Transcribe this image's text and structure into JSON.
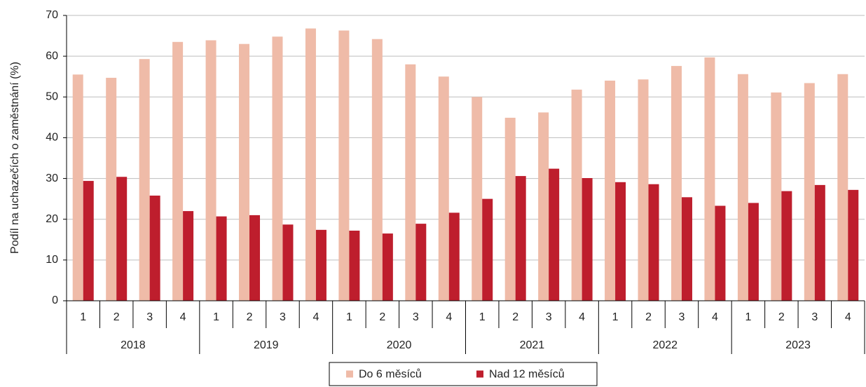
{
  "chart_data": {
    "type": "bar",
    "y_label": "Podíl na uchazečích o zaměstnání (%)",
    "categories": [
      "1",
      "2",
      "3",
      "4",
      "1",
      "2",
      "3",
      "4",
      "1",
      "2",
      "3",
      "4",
      "1",
      "2",
      "3",
      "4",
      "1",
      "2",
      "3",
      "4",
      "1",
      "2",
      "3",
      "4"
    ],
    "x_groups": [
      "2018",
      "2019",
      "2020",
      "2021",
      "2022",
      "2023"
    ],
    "series": [
      {
        "name": "Do 6 měsíců",
        "color": "#efbba8",
        "values": [
          55.5,
          54.7,
          59.3,
          63.5,
          63.9,
          63,
          64.8,
          66.8,
          66.3,
          64.2,
          58,
          55,
          50,
          44.9,
          46.2,
          51.8,
          54,
          54.3,
          57.6,
          59.7,
          55.6,
          51.1,
          53.4,
          55.6
        ]
      },
      {
        "name": "Nad 12 měsíců",
        "color": "#be1e2d",
        "values": [
          29.4,
          30.4,
          25.8,
          22,
          20.7,
          21,
          18.7,
          17.4,
          17.2,
          16.5,
          18.9,
          21.6,
          25,
          30.6,
          32.4,
          30.1,
          29.1,
          28.6,
          25.4,
          23.3,
          24,
          26.9,
          28.4,
          27.2
        ]
      }
    ],
    "ylim": [
      0,
      70
    ],
    "yticks": [
      0,
      10,
      20,
      30,
      40,
      50,
      60,
      70
    ],
    "grid": true,
    "legend": "bottom"
  }
}
